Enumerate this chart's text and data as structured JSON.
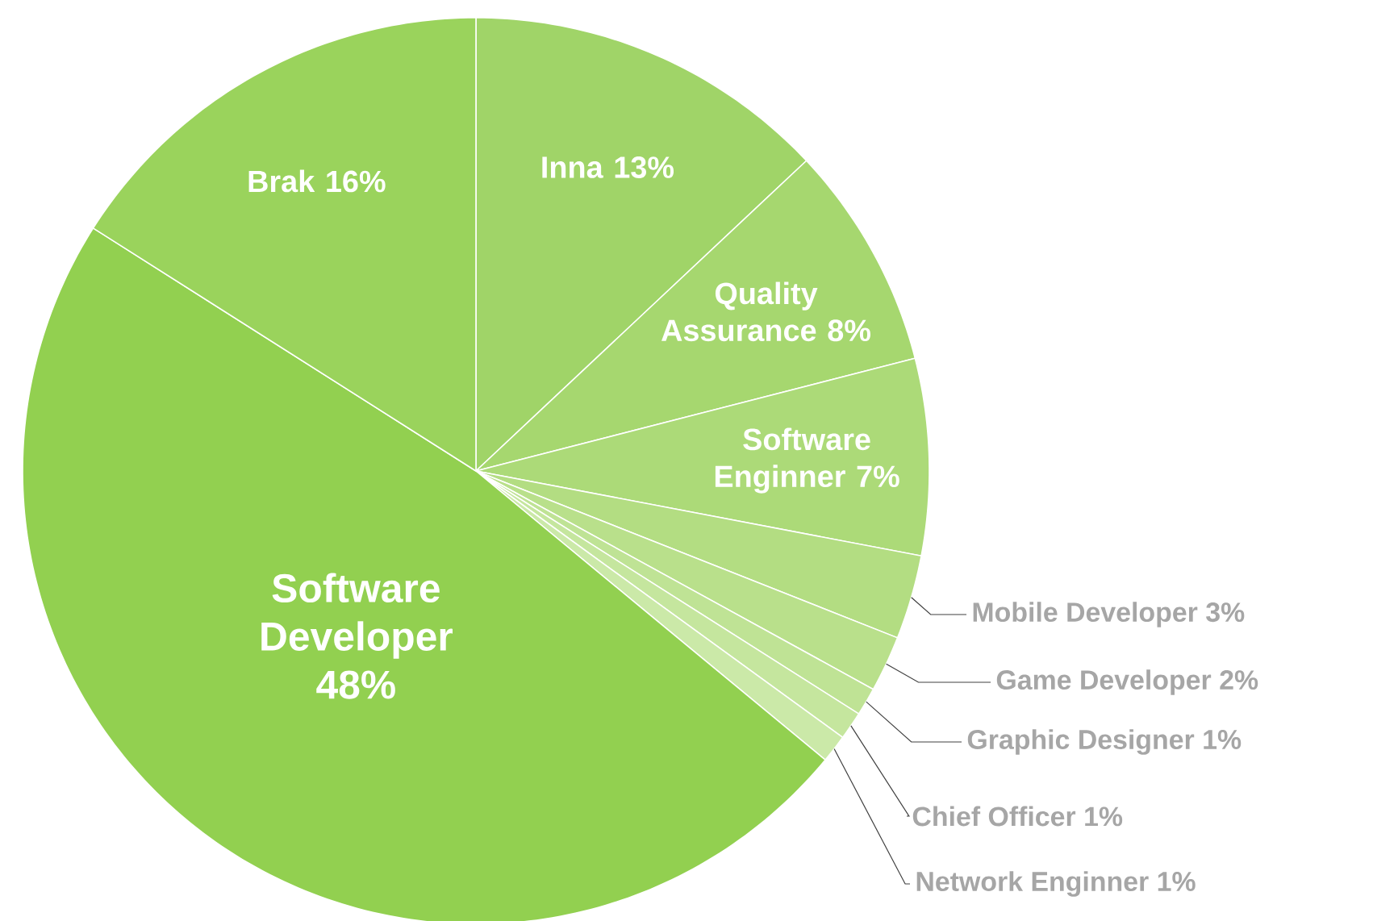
{
  "chart_data": {
    "type": "pie",
    "categories": [
      "Inna",
      "Quality Assurance",
      "Software Enginner",
      "Mobile Developer",
      "Game Developer",
      "Graphic Designer",
      "Chief Officer",
      "Network Enginner",
      "Software Developer",
      "Brak"
    ],
    "values": [
      13,
      8,
      7,
      3,
      2,
      1,
      1,
      1,
      48,
      16
    ],
    "value_labels": [
      "13%",
      "8%",
      "7%",
      "3%",
      "2%",
      "1%",
      "1%",
      "1%",
      "48%",
      "16%"
    ],
    "colors": [
      "#a0d468",
      "#a6d76f",
      "#acda78",
      "#b3dd82",
      "#b9e08b",
      "#bfe395",
      "#c5e69e",
      "#cbe9a8",
      "#92d050",
      "#9ad35c"
    ]
  }
}
